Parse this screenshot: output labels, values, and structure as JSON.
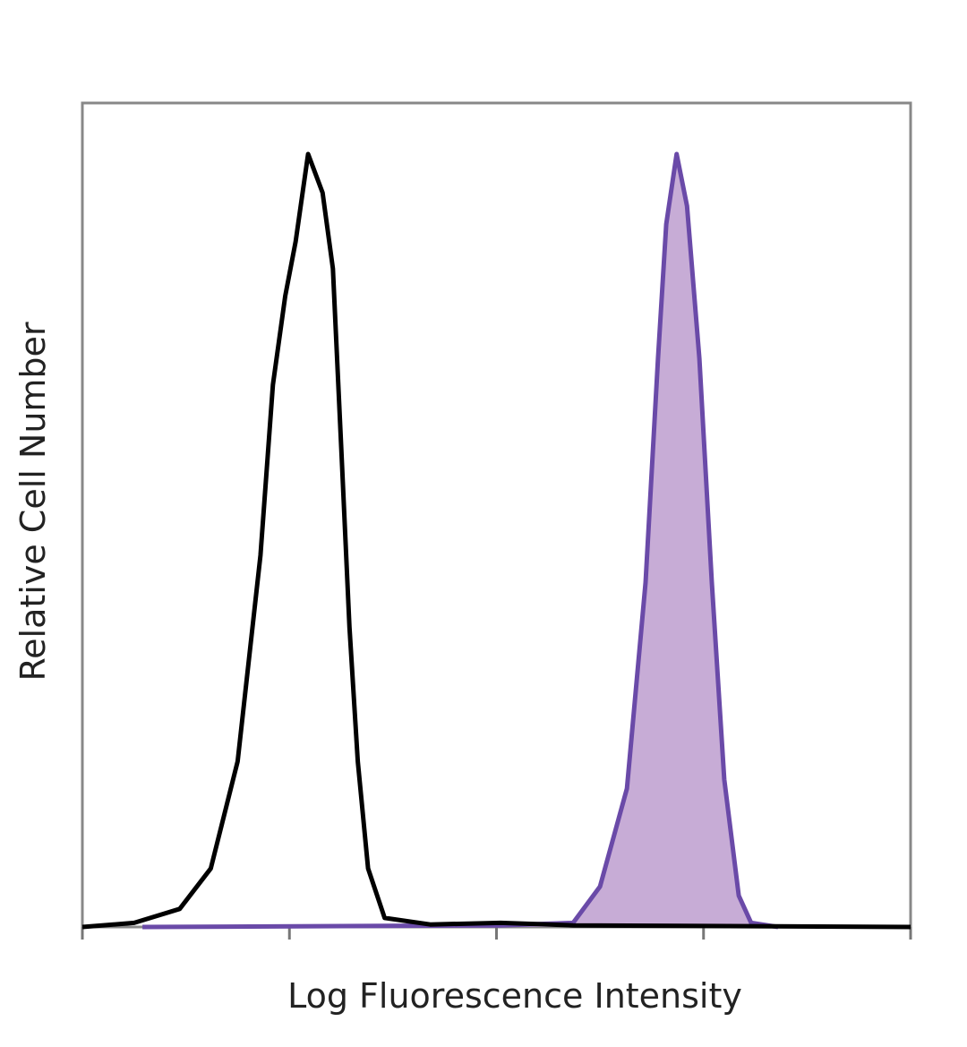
{
  "chart_data": {
    "type": "area",
    "x_label": "Log Fluorescence Intensity",
    "y_label": "Relative Cell Number",
    "xlim": [
      0,
      4
    ],
    "xticks": [
      0,
      1,
      2,
      3,
      4
    ],
    "ylim": [
      0,
      100
    ],
    "series": [
      {
        "color": "#6a4aa8",
        "fill": "#c7acd6",
        "x": [
          0.29,
          2.02,
          2.37,
          2.5,
          2.63,
          2.72,
          2.78,
          2.82,
          2.87,
          2.92,
          2.98,
          3.04,
          3.1,
          3.17,
          3.23,
          3.36
        ],
        "values": [
          0,
          0.2,
          0.5,
          4.9,
          16.8,
          41.8,
          69.0,
          85.3,
          93.8,
          87.5,
          69.0,
          41.8,
          17.9,
          3.8,
          0.5,
          0
        ]
      },
      {
        "color": "#000000",
        "x": [
          0,
          0.25,
          0.47,
          0.62,
          0.75,
          0.86,
          0.92,
          0.98,
          1.03,
          1.09,
          1.16,
          1.21,
          1.25,
          1.29,
          1.33,
          1.38,
          1.46,
          1.68,
          2.02,
          2.37,
          4
        ],
        "values": [
          0,
          0.5,
          2.2,
          7.1,
          20.1,
          45.1,
          65.8,
          76.6,
          83.2,
          93.8,
          89.1,
          79.9,
          58.2,
          36.4,
          20.1,
          7.1,
          1.1,
          0.3,
          0.5,
          0.2,
          0
        ]
      }
    ]
  }
}
